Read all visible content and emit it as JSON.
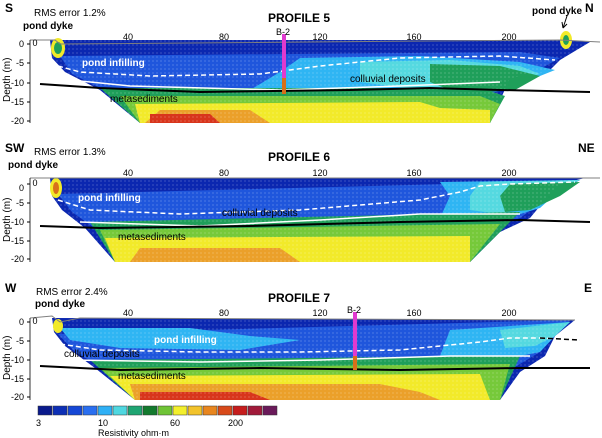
{
  "profiles": [
    {
      "title": "PROFILE 5",
      "dir_left": "S",
      "dir_right": "N",
      "rms": "RMS error 1.2%",
      "dyke_labels": [
        "pond dyke",
        "pond dyke"
      ],
      "borehole": "B-2",
      "x_ticks": [
        "0",
        "40",
        "80",
        "120",
        "160",
        "200"
      ],
      "depth_ticks": [
        "0",
        "-5",
        "-10",
        "-15",
        "-20"
      ],
      "ylabel": "Depth (m)",
      "units": [
        "pond infilling",
        "colluvial deposits",
        "metasediments"
      ]
    },
    {
      "title": "PROFILE 6",
      "dir_left": "SW",
      "dir_right": "NE",
      "rms": "RMS error 1.3%",
      "dyke_labels": [
        "pond dyke"
      ],
      "x_ticks": [
        "0",
        "40",
        "80",
        "120",
        "160",
        "200"
      ],
      "depth_ticks": [
        "0",
        "-5",
        "-10",
        "-15",
        "-20"
      ],
      "ylabel": "Depth (m)",
      "units": [
        "pond infilling",
        "colluvial deposits",
        "metasediments"
      ]
    },
    {
      "title": "PROFILE 7",
      "dir_left": "W",
      "dir_right": "E",
      "rms": "RMS error 2.4%",
      "dyke_labels": [
        "pond dyke"
      ],
      "borehole": "B-2",
      "x_ticks": [
        "0",
        "40",
        "80",
        "120",
        "160",
        "200"
      ],
      "depth_ticks": [
        "0",
        "-5",
        "-10",
        "-15",
        "-20"
      ],
      "ylabel": "Depth (m)",
      "units": [
        "pond infilling",
        "colluvial deposits",
        "metasediments"
      ]
    }
  ],
  "legend": {
    "title": "Resistivity ohm·m",
    "tick_labels": [
      "3",
      "10",
      "60",
      "200"
    ],
    "colors": [
      "#0a1a8c",
      "#0d2fb5",
      "#1547d6",
      "#2a6ff0",
      "#2fb0f5",
      "#4fd7e0",
      "#1fa572",
      "#137a2e",
      "#6fc436",
      "#f3ef2c",
      "#f2c32b",
      "#e8861f",
      "#d84a1a",
      "#c61d1d",
      "#a11a3a",
      "#6a1a5a"
    ]
  },
  "palette": {
    "deep_blue": "#0b27b0",
    "blue": "#1f56dc",
    "light_blue": "#2fb5f3",
    "cyan": "#55d9e0",
    "green": "#1f9f5a",
    "dark_green": "#137a2e",
    "lime": "#76c93a",
    "yellow": "#f2ea2a",
    "orange": "#eba02a",
    "red": "#d8351c",
    "borehole": "#e03acf"
  }
}
